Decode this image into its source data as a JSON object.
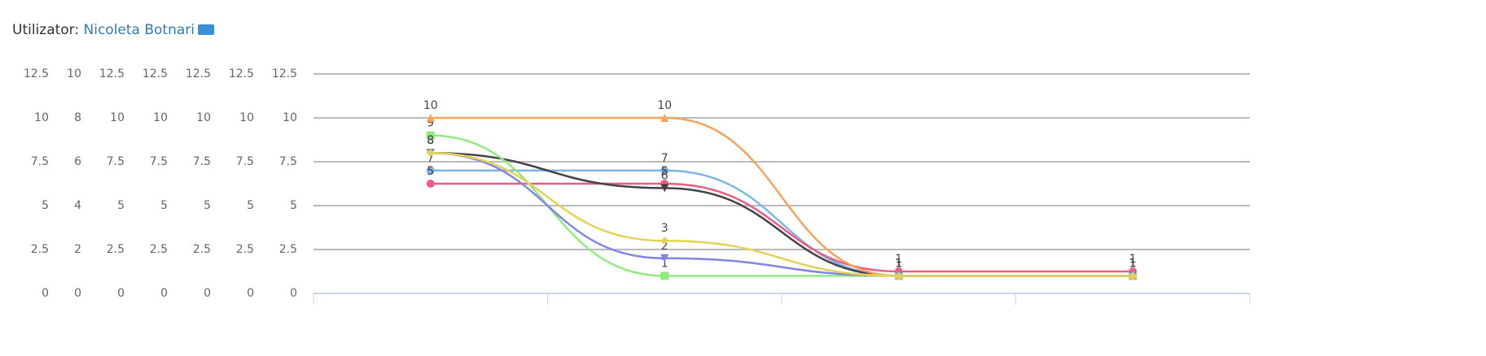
{
  "header": {
    "label": "Utilizator:",
    "user": "Nicoleta Botnari"
  },
  "chart_data": {
    "type": "line",
    "smooth": true,
    "grid": true,
    "data_labels": true,
    "categories": [
      null,
      null,
      null,
      null
    ],
    "y_axes": [
      {
        "ylim": [
          0,
          12.5
        ],
        "yticks": [
          0,
          2.5,
          5,
          7.5,
          10,
          12.5
        ]
      },
      {
        "ylim": [
          0,
          10
        ],
        "yticks": [
          0,
          2,
          4,
          6,
          8,
          10
        ]
      },
      {
        "ylim": [
          0,
          12.5
        ],
        "yticks": [
          0,
          2.5,
          5,
          7.5,
          10,
          12.5
        ]
      },
      {
        "ylim": [
          0,
          12.5
        ],
        "yticks": [
          0,
          2.5,
          5,
          7.5,
          10,
          12.5
        ]
      },
      {
        "ylim": [
          0,
          12.5
        ],
        "yticks": [
          0,
          2.5,
          5,
          7.5,
          10,
          12.5
        ]
      },
      {
        "ylim": [
          0,
          12.5
        ],
        "yticks": [
          0,
          2.5,
          5,
          7.5,
          10,
          12.5
        ]
      },
      {
        "ylim": [
          0,
          12.5
        ],
        "yticks": [
          0,
          2.5,
          5,
          7.5,
          10,
          12.5
        ]
      }
    ],
    "series": [
      {
        "color": "#7cb5ec",
        "marker": "circle",
        "axis": 0,
        "values": [
          7,
          7,
          1,
          1
        ]
      },
      {
        "color": "#f15c80",
        "marker": "circle",
        "axis": 1,
        "values": [
          5,
          5,
          1,
          1
        ]
      },
      {
        "color": "#434348",
        "marker": "triangle-down",
        "axis": 2,
        "values": [
          8,
          6,
          1,
          1
        ]
      },
      {
        "color": "#90ed7d",
        "marker": "square",
        "axis": 3,
        "values": [
          9,
          1,
          1,
          1
        ]
      },
      {
        "color": "#f7a35c",
        "marker": "triangle",
        "axis": 4,
        "values": [
          10,
          10,
          1,
          1
        ]
      },
      {
        "color": "#8085e9",
        "marker": "triangle-down",
        "axis": 5,
        "values": [
          8,
          2,
          1,
          1
        ]
      },
      {
        "color": "#e4d354",
        "marker": "diamond",
        "axis": 6,
        "values": [
          8,
          3,
          1,
          1
        ]
      }
    ]
  }
}
